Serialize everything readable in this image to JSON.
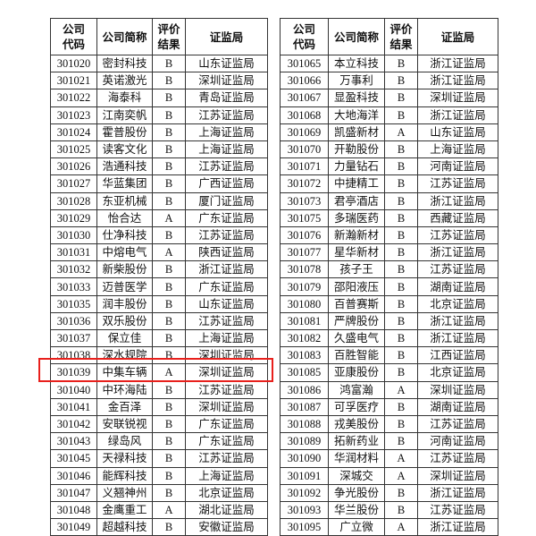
{
  "tables": [
    {
      "header": [
        [
          "公司",
          "代码"
        ],
        [
          "公司简称"
        ],
        [
          "评价",
          "结果"
        ],
        [
          "证监局"
        ]
      ],
      "rows": [
        [
          "301020",
          "密封科技",
          "B",
          "山东证监局"
        ],
        [
          "301021",
          "英诺激光",
          "B",
          "深圳证监局"
        ],
        [
          "301022",
          "海泰科",
          "B",
          "青岛证监局"
        ],
        [
          "301023",
          "江南奕帆",
          "B",
          "江苏证监局"
        ],
        [
          "301024",
          "霍普股份",
          "B",
          "上海证监局"
        ],
        [
          "301025",
          "读客文化",
          "B",
          "上海证监局"
        ],
        [
          "301026",
          "浩通科技",
          "B",
          "江苏证监局"
        ],
        [
          "301027",
          "华蓝集团",
          "B",
          "广西证监局"
        ],
        [
          "301028",
          "东亚机械",
          "B",
          "厦门证监局"
        ],
        [
          "301029",
          "怡合达",
          "A",
          "广东证监局"
        ],
        [
          "301030",
          "仕净科技",
          "B",
          "江苏证监局"
        ],
        [
          "301031",
          "中熔电气",
          "A",
          "陕西证监局"
        ],
        [
          "301032",
          "新柴股份",
          "B",
          "浙江证监局"
        ],
        [
          "301033",
          "迈普医学",
          "B",
          "广东证监局"
        ],
        [
          "301035",
          "润丰股份",
          "B",
          "山东证监局"
        ],
        [
          "301036",
          "双乐股份",
          "B",
          "江苏证监局"
        ],
        [
          "301037",
          "保立佳",
          "B",
          "上海证监局"
        ],
        [
          "301038",
          "深水规院",
          "B",
          "深圳证监局"
        ],
        [
          "301039",
          "中集车辆",
          "A",
          "深圳证监局"
        ],
        [
          "301040",
          "中环海陆",
          "B",
          "江苏证监局"
        ],
        [
          "301041",
          "金百泽",
          "B",
          "深圳证监局"
        ],
        [
          "301042",
          "安联锐视",
          "B",
          "广东证监局"
        ],
        [
          "301043",
          "绿岛风",
          "B",
          "广东证监局"
        ],
        [
          "301045",
          "天禄科技",
          "B",
          "江苏证监局"
        ],
        [
          "301046",
          "能辉科技",
          "B",
          "上海证监局"
        ],
        [
          "301047",
          "义翘神州",
          "B",
          "北京证监局"
        ],
        [
          "301048",
          "金鹰重工",
          "A",
          "湖北证监局"
        ],
        [
          "301049",
          "超越科技",
          "B",
          "安徽证监局"
        ]
      ]
    },
    {
      "header": [
        [
          "公司",
          "代码"
        ],
        [
          "公司简称"
        ],
        [
          "评价",
          "结果"
        ],
        [
          "证监局"
        ]
      ],
      "rows": [
        [
          "301065",
          "本立科技",
          "B",
          "浙江证监局"
        ],
        [
          "301066",
          "万事利",
          "B",
          "浙江证监局"
        ],
        [
          "301067",
          "显盈科技",
          "B",
          "深圳证监局"
        ],
        [
          "301068",
          "大地海洋",
          "B",
          "浙江证监局"
        ],
        [
          "301069",
          "凯盛新材",
          "A",
          "山东证监局"
        ],
        [
          "301070",
          "开勒股份",
          "B",
          "上海证监局"
        ],
        [
          "301071",
          "力量钻石",
          "B",
          "河南证监局"
        ],
        [
          "301072",
          "中捷精工",
          "B",
          "江苏证监局"
        ],
        [
          "301073",
          "君亭酒店",
          "B",
          "浙江证监局"
        ],
        [
          "301075",
          "多瑞医药",
          "B",
          "西藏证监局"
        ],
        [
          "301076",
          "新瀚新材",
          "B",
          "江苏证监局"
        ],
        [
          "301077",
          "星华新材",
          "B",
          "浙江证监局"
        ],
        [
          "301078",
          "孩子王",
          "B",
          "江苏证监局"
        ],
        [
          "301079",
          "邵阳液压",
          "B",
          "湖南证监局"
        ],
        [
          "301080",
          "百普赛斯",
          "B",
          "北京证监局"
        ],
        [
          "301081",
          "严牌股份",
          "B",
          "浙江证监局"
        ],
        [
          "301082",
          "久盛电气",
          "B",
          "浙江证监局"
        ],
        [
          "301083",
          "百胜智能",
          "B",
          "江西证监局"
        ],
        [
          "301085",
          "亚康股份",
          "B",
          "北京证监局"
        ],
        [
          "301086",
          "鸿富瀚",
          "A",
          "深圳证监局"
        ],
        [
          "301087",
          "可孚医疗",
          "B",
          "湖南证监局"
        ],
        [
          "301088",
          "戎美股份",
          "B",
          "江苏证监局"
        ],
        [
          "301089",
          "拓新药业",
          "B",
          "河南证监局"
        ],
        [
          "301090",
          "华润材料",
          "A",
          "江苏证监局"
        ],
        [
          "301091",
          "深城交",
          "A",
          "深圳证监局"
        ],
        [
          "301092",
          "争光股份",
          "B",
          "浙江证监局"
        ],
        [
          "301093",
          "华兰股份",
          "B",
          "江苏证监局"
        ],
        [
          "301095",
          "广立微",
          "A",
          "浙江证监局"
        ]
      ]
    }
  ]
}
